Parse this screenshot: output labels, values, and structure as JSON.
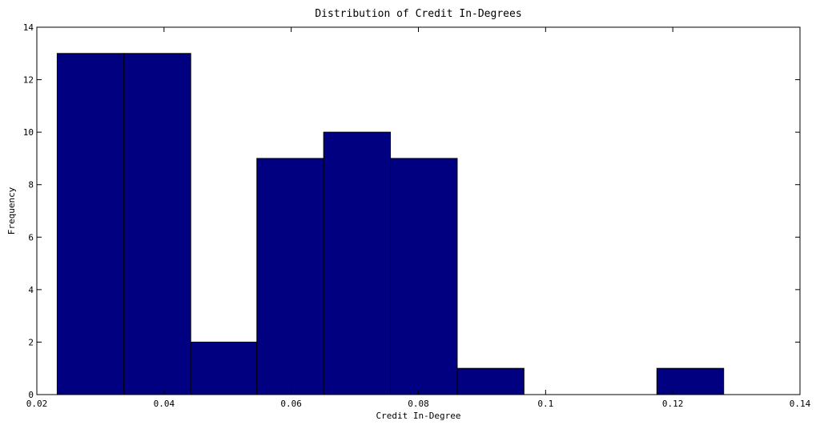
{
  "chart_data": {
    "type": "bar",
    "title": "Distribution of Credit In-Degrees",
    "xlabel": "Credit In-Degree",
    "ylabel": "Frequency",
    "xlim": [
      0.02,
      0.14
    ],
    "ylim": [
      0,
      14
    ],
    "xticks": [
      0.02,
      0.04,
      0.06,
      0.08,
      0.1,
      0.12,
      0.14
    ],
    "xtick_labels": [
      "0.02",
      "0.04",
      "0.06",
      "0.08",
      "0.1",
      "0.12",
      "0.14"
    ],
    "yticks": [
      0,
      2,
      4,
      6,
      8,
      10,
      12,
      14
    ],
    "ytick_labels": [
      "0",
      "2",
      "4",
      "6",
      "8",
      "10",
      "12",
      "14"
    ],
    "grid": false,
    "bar_color": "#000080",
    "bins": [
      {
        "x0": 0.0232,
        "x1": 0.0337,
        "value": 13
      },
      {
        "x0": 0.0337,
        "x1": 0.0442,
        "value": 13
      },
      {
        "x0": 0.0442,
        "x1": 0.0546,
        "value": 2
      },
      {
        "x0": 0.0546,
        "x1": 0.0651,
        "value": 9
      },
      {
        "x0": 0.0651,
        "x1": 0.0756,
        "value": 10
      },
      {
        "x0": 0.0756,
        "x1": 0.0861,
        "value": 9
      },
      {
        "x0": 0.0861,
        "x1": 0.0966,
        "value": 1
      },
      {
        "x0": 0.0966,
        "x1": 0.1071,
        "value": 0
      },
      {
        "x0": 0.1071,
        "x1": 0.1175,
        "value": 0
      },
      {
        "x0": 0.1175,
        "x1": 0.128,
        "value": 1
      }
    ]
  }
}
